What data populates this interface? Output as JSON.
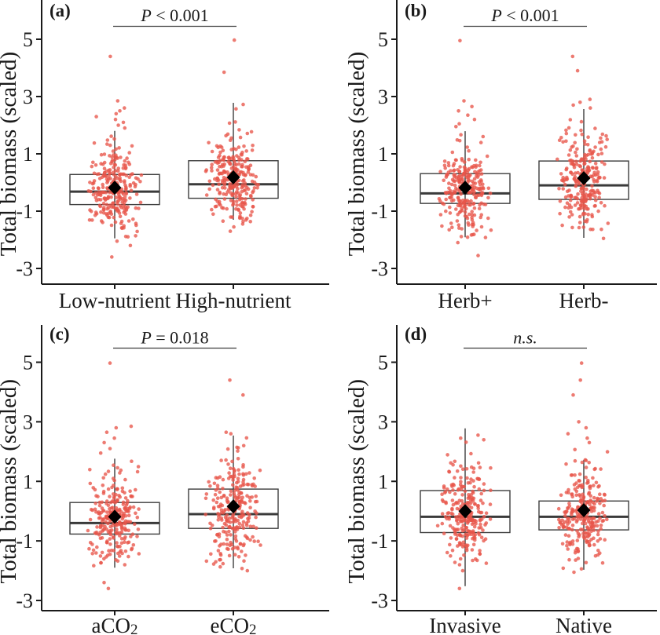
{
  "figure_title": "",
  "chart_data": {
    "type": "boxplot-jitter",
    "ylabel": "Total biomass (scaled)",
    "yticks": [
      5,
      3,
      1,
      -1,
      -3
    ],
    "ylim": [
      -3.5,
      6.2
    ],
    "legend": "none",
    "grid": "off",
    "colors": {
      "points": "#e8564a",
      "points_opacity": 0.78,
      "box_stroke": "#3d3d3d",
      "median_stroke": "#3a3a3a",
      "mean_fill": "#000000",
      "axis": "#1a1a1a"
    },
    "panels": [
      {
        "tag": "(a)",
        "significance": {
          "text": "P < 0.001",
          "italic": "P",
          "rest": " < 0.001"
        },
        "groups": [
          {
            "label": "Low-nutrient",
            "label_main": "Low-nutrient",
            "label_sub": "",
            "n": 255,
            "box": {
              "whisker_low": -1.95,
              "q1": -0.77,
              "median": -0.32,
              "q3": 0.28,
              "whisker_high": 1.8
            },
            "mean": -0.18,
            "outliers": [
              1.9,
              2.0,
              2.1,
              2.2,
              2.3,
              2.4,
              2.5,
              2.6,
              2.85,
              4.4,
              -2.05,
              -2.2,
              -2.6
            ],
            "cloud": {
              "mu": -0.3,
              "sigma": 0.78,
              "min": -2.0,
              "max": 1.8,
              "seed": 11
            }
          },
          {
            "label": "High-nutrient",
            "label_main": "High-nutrient",
            "label_sub": "",
            "n": 255,
            "box": {
              "whisker_low": -1.3,
              "q1": -0.55,
              "median": -0.06,
              "q3": 0.76,
              "whisker_high": 2.78
            },
            "mean": 0.18,
            "outliers": [
              4.97,
              3.85,
              -1.45,
              -1.55,
              -1.7
            ],
            "cloud": {
              "mu": 0.0,
              "sigma": 0.82,
              "min": -1.4,
              "max": 2.8,
              "seed": 22
            }
          }
        ]
      },
      {
        "tag": "(b)",
        "significance": {
          "text": "P < 0.001",
          "italic": "P",
          "rest": " < 0.001"
        },
        "groups": [
          {
            "label": "Herb+",
            "label_main": "Herb+",
            "label_sub": "",
            "n": 255,
            "box": {
              "whisker_low": -1.91,
              "q1": -0.73,
              "median": -0.38,
              "q3": 0.31,
              "whisker_high": 1.79
            },
            "mean": -0.18,
            "outliers": [
              1.95,
              2.05,
              2.2,
              2.35,
              2.5,
              2.65,
              2.85,
              4.95,
              -2.1,
              -2.55
            ],
            "cloud": {
              "mu": -0.3,
              "sigma": 0.78,
              "min": -2.0,
              "max": 1.8,
              "seed": 33
            }
          },
          {
            "label": "Herb-",
            "label_main": "Herb-",
            "label_sub": "",
            "n": 255,
            "box": {
              "whisker_low": -1.93,
              "q1": -0.59,
              "median": -0.1,
              "q3": 0.75,
              "whisker_high": 2.56
            },
            "mean": 0.15,
            "outliers": [
              2.6,
              2.7,
              2.8,
              2.9,
              3.9,
              4.4
            ],
            "cloud": {
              "mu": 0.0,
              "sigma": 0.85,
              "min": -2.0,
              "max": 2.55,
              "seed": 44
            }
          }
        ]
      },
      {
        "tag": "(c)",
        "significance": {
          "text": "P = 0.018",
          "italic": "P",
          "rest": " = 0.018"
        },
        "groups": [
          {
            "label": "aCO₂",
            "label_main": "aCO",
            "label_sub": "2",
            "n": 255,
            "box": {
              "whisker_low": -1.9,
              "q1": -0.77,
              "median": -0.4,
              "q3": 0.29,
              "whisker_high": 1.76
            },
            "mean": -0.19,
            "outliers": [
              1.95,
              2.1,
              2.3,
              2.45,
              2.65,
              2.8,
              2.85,
              4.97,
              -2.4,
              -2.6
            ],
            "cloud": {
              "mu": -0.35,
              "sigma": 0.78,
              "min": -1.95,
              "max": 1.8,
              "seed": 55
            }
          },
          {
            "label": "eCO₂",
            "label_main": "eCO",
            "label_sub": "2",
            "n": 255,
            "box": {
              "whisker_low": -1.92,
              "q1": -0.58,
              "median": -0.1,
              "q3": 0.74,
              "whisker_high": 2.54
            },
            "mean": 0.16,
            "outliers": [
              2.6,
              2.65,
              3.9,
              4.4,
              -2.0
            ],
            "cloud": {
              "mu": 0.0,
              "sigma": 0.85,
              "min": -1.95,
              "max": 2.55,
              "seed": 66
            }
          }
        ]
      },
      {
        "tag": "(d)",
        "significance": {
          "text": "n.s.",
          "italic": "n.s.",
          "rest": ""
        },
        "groups": [
          {
            "label": "Invasive",
            "label_main": "Invasive",
            "label_sub": "",
            "n": 255,
            "box": {
              "whisker_low": -2.52,
              "q1": -0.72,
              "median": -0.19,
              "q3": 0.69,
              "whisker_high": 2.78
            },
            "mean": 0.0,
            "outliers": [
              2.45,
              2.55,
              -2.6
            ],
            "cloud": {
              "mu": -0.12,
              "sigma": 0.85,
              "min": -2.1,
              "max": 2.4,
              "seed": 77
            }
          },
          {
            "label": "Native",
            "label_main": "Native",
            "label_sub": "",
            "n": 255,
            "box": {
              "whisker_low": -1.97,
              "q1": -0.63,
              "median": -0.19,
              "q3": 0.34,
              "whisker_high": 1.72
            },
            "mean": 0.03,
            "outliers": [
              2.3,
              2.45,
              2.6,
              2.8,
              3.0,
              3.9,
              4.4,
              4.97,
              -2.05
            ],
            "cloud": {
              "mu": -0.12,
              "sigma": 0.8,
              "min": -1.95,
              "max": 2.2,
              "seed": 88
            }
          }
        ]
      }
    ]
  }
}
